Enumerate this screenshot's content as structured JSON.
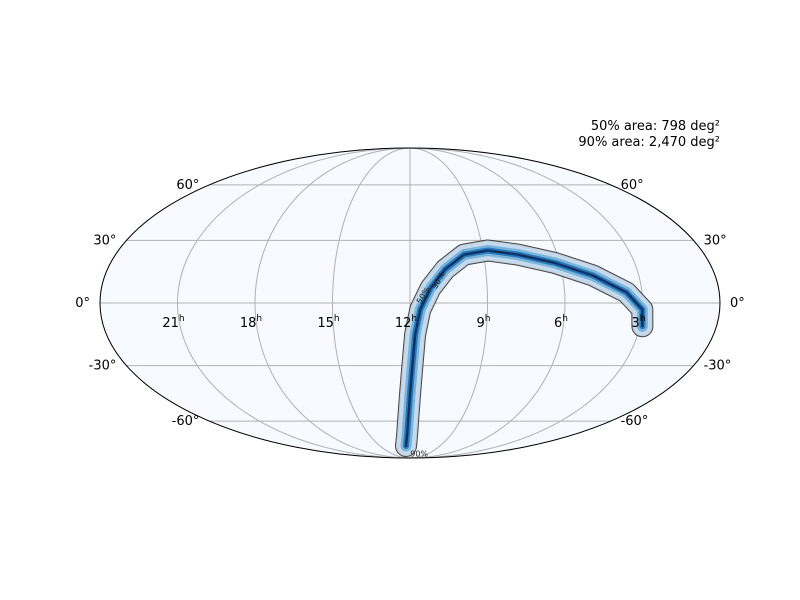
{
  "chart_data": {
    "type": "skymap",
    "projection": "mollweide",
    "grid": true,
    "colormap": "Blues",
    "annotation": {
      "area_50": "50% area: 798 deg²",
      "area_90": "90% area: 2,470 deg²"
    },
    "ra_tick_labels": [
      {
        "hours": 21,
        "text": "21",
        "unit": "h"
      },
      {
        "hours": 18,
        "text": "18",
        "unit": "h"
      },
      {
        "hours": 15,
        "text": "15",
        "unit": "h"
      },
      {
        "hours": 12,
        "text": "12",
        "unit": "h"
      },
      {
        "hours": 9,
        "text": "9",
        "unit": "h"
      },
      {
        "hours": 6,
        "text": "6",
        "unit": "h"
      },
      {
        "hours": 3,
        "text": "3",
        "unit": "h"
      }
    ],
    "dec_tick_labels": [
      {
        "deg": 60,
        "text": "60°"
      },
      {
        "deg": 30,
        "text": "30°"
      },
      {
        "deg": 0,
        "text": "0°"
      },
      {
        "deg": -30,
        "text": "-30°"
      },
      {
        "deg": -60,
        "text": "-60°"
      }
    ],
    "contour_labels": [
      "50%",
      "90%",
      "90%"
    ],
    "credible_region_path": [
      {
        "ra_h": 12.4,
        "dec": -77
      },
      {
        "ra_h": 12.2,
        "dec": -68
      },
      {
        "ra_h": 12.1,
        "dec": -58
      },
      {
        "ra_h": 12.0,
        "dec": -45
      },
      {
        "ra_h": 11.9,
        "dec": -30
      },
      {
        "ra_h": 11.8,
        "dec": -15
      },
      {
        "ra_h": 11.6,
        "dec": -3
      },
      {
        "ra_h": 11.2,
        "dec": 7
      },
      {
        "ra_h": 10.6,
        "dec": 16
      },
      {
        "ra_h": 9.8,
        "dec": 23
      },
      {
        "ra_h": 8.8,
        "dec": 25
      },
      {
        "ra_h": 7.6,
        "dec": 23
      },
      {
        "ra_h": 6.2,
        "dec": 19
      },
      {
        "ra_h": 4.8,
        "dec": 13
      },
      {
        "ra_h": 3.6,
        "dec": 5
      },
      {
        "ra_h": 3.0,
        "dec": -3
      },
      {
        "ra_h": 2.9,
        "dec": -11
      }
    ]
  }
}
